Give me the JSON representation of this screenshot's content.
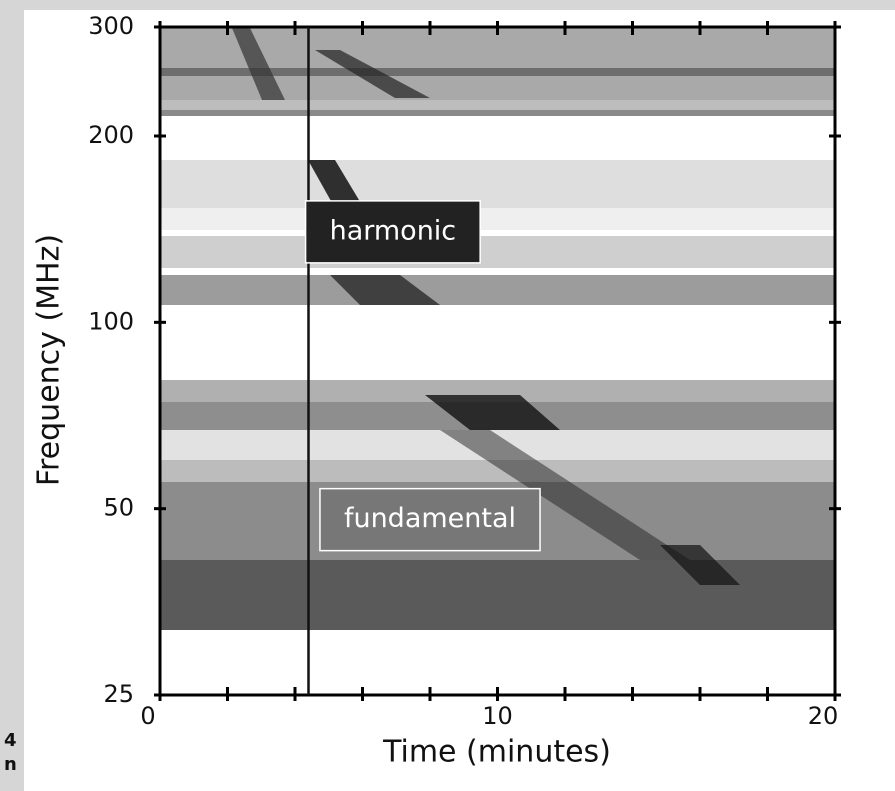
{
  "chart_data": {
    "type": "spectrogram",
    "x_label": "Time (minutes)",
    "y_label": "Frequency (MHz)",
    "xlim": [
      0,
      20
    ],
    "xticks": [
      0,
      10,
      20
    ],
    "xticks_minor": [
      2,
      4,
      6,
      8,
      12,
      14,
      16,
      18
    ],
    "ylim": [
      25,
      300
    ],
    "yticks": [
      25,
      50,
      100,
      200,
      300
    ],
    "y_scale": "log",
    "vline_x": 4.4,
    "annotations": [
      {
        "text": "harmonic",
        "x": 6.9,
        "y": 140,
        "color": "#222222"
      },
      {
        "text": "fundamental",
        "x": 8.0,
        "y": 48,
        "color": "#777777"
      }
    ],
    "fragments": [
      "4",
      "n"
    ]
  }
}
